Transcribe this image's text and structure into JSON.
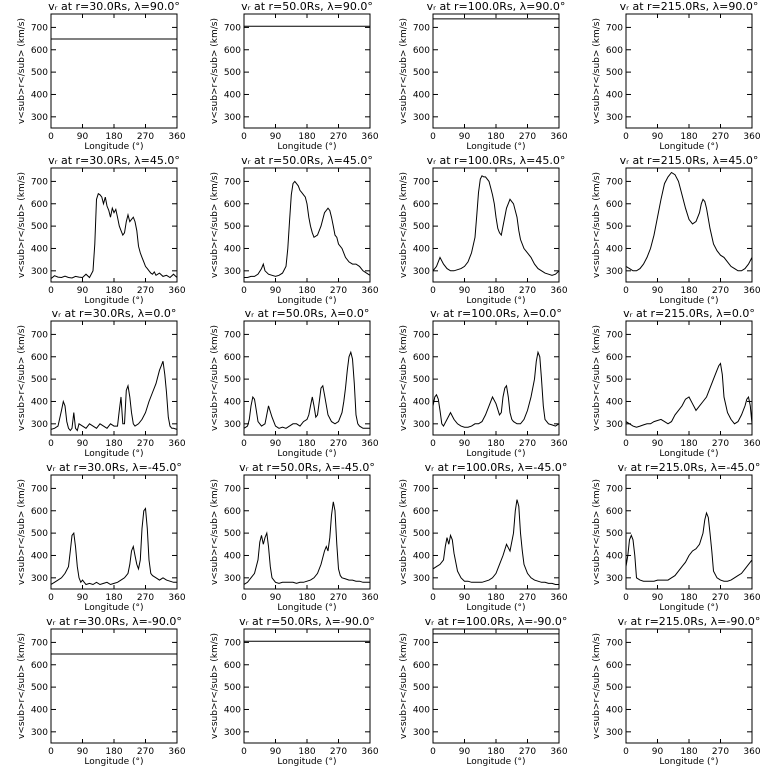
{
  "chart_data": {
    "type": "line",
    "grid": "4 columns x 5 rows of line panels; no gridlines, no legend",
    "xlabel": "Longitude (°)",
    "ylabel": "v<sub>r</sub> (km/s)",
    "xlim": [
      0,
      360
    ],
    "ylim": [
      250,
      760
    ],
    "xticks": [
      0,
      90,
      180,
      270,
      360
    ],
    "yticks": [
      300,
      400,
      500,
      600,
      700
    ],
    "panels": [
      {
        "title": "vᵣ at r=30.0Rs, λ=90.0°",
        "x": [
          0,
          360
        ],
        "y": [
          648,
          648
        ]
      },
      {
        "title": "vᵣ at r=50.0Rs, λ=90.0°",
        "x": [
          0,
          360
        ],
        "y": [
          705,
          705
        ]
      },
      {
        "title": "vᵣ at r=100.0Rs, λ=90.0°",
        "x": [
          0,
          360
        ],
        "y": [
          738,
          738
        ]
      },
      {
        "title": "vᵣ at r=215.0Rs, λ=90.0°",
        "x": [
          0,
          360
        ],
        "y": [
          760,
          760
        ]
      },
      {
        "title": "vᵣ at r=30.0Rs, λ=45.0°",
        "x": [
          0,
          10,
          20,
          30,
          40,
          50,
          60,
          70,
          80,
          90,
          100,
          110,
          120,
          125,
          130,
          135,
          140,
          145,
          150,
          155,
          160,
          165,
          170,
          175,
          180,
          185,
          190,
          195,
          200,
          205,
          210,
          215,
          220,
          225,
          230,
          235,
          240,
          245,
          250,
          255,
          260,
          265,
          270,
          275,
          280,
          285,
          290,
          295,
          300,
          310,
          320,
          330,
          340,
          350,
          360
        ],
        "y": [
          265,
          278,
          272,
          270,
          276,
          270,
          268,
          275,
          272,
          270,
          285,
          270,
          300,
          420,
          620,
          645,
          640,
          630,
          600,
          630,
          590,
          570,
          540,
          580,
          560,
          575,
          540,
          500,
          480,
          460,
          470,
          520,
          550,
          520,
          530,
          540,
          520,
          480,
          410,
          380,
          360,
          340,
          320,
          310,
          300,
          290,
          285,
          295,
          280,
          290,
          275,
          280,
          270,
          285,
          270
        ]
      },
      {
        "title": "vᵣ at r=50.0Rs, λ=45.0°",
        "x": [
          0,
          10,
          20,
          30,
          40,
          50,
          55,
          60,
          70,
          80,
          90,
          100,
          110,
          120,
          125,
          130,
          135,
          140,
          145,
          150,
          155,
          160,
          165,
          170,
          175,
          180,
          185,
          190,
          195,
          200,
          210,
          220,
          230,
          240,
          245,
          250,
          255,
          260,
          265,
          270,
          280,
          290,
          300,
          310,
          320,
          330,
          340,
          350,
          360
        ],
        "y": [
          270,
          270,
          275,
          275,
          285,
          310,
          330,
          300,
          285,
          280,
          275,
          280,
          290,
          320,
          400,
          520,
          640,
          690,
          700,
          690,
          680,
          660,
          650,
          640,
          630,
          600,
          540,
          500,
          470,
          450,
          460,
          500,
          560,
          580,
          570,
          540,
          500,
          460,
          450,
          420,
          400,
          360,
          340,
          330,
          330,
          320,
          300,
          290,
          280
        ]
      },
      {
        "title": "vᵣ at r=100.0Rs, λ=45.0°",
        "x": [
          0,
          10,
          20,
          30,
          40,
          50,
          60,
          70,
          80,
          90,
          100,
          110,
          120,
          125,
          130,
          135,
          140,
          145,
          150,
          155,
          160,
          165,
          170,
          175,
          180,
          185,
          190,
          195,
          200,
          210,
          220,
          230,
          240,
          245,
          250,
          260,
          270,
          280,
          290,
          300,
          310,
          320,
          330,
          340,
          350,
          360
        ],
        "y": [
          300,
          320,
          360,
          330,
          310,
          300,
          300,
          305,
          310,
          320,
          340,
          380,
          450,
          550,
          650,
          710,
          725,
          720,
          720,
          710,
          700,
          670,
          640,
          600,
          540,
          490,
          470,
          460,
          500,
          580,
          620,
          600,
          540,
          480,
          440,
          400,
          380,
          360,
          330,
          310,
          300,
          290,
          285,
          280,
          285,
          300
        ]
      },
      {
        "title": "vᵣ at r=215.0Rs, λ=45.0°",
        "x": [
          0,
          10,
          20,
          30,
          40,
          50,
          60,
          70,
          80,
          90,
          100,
          110,
          120,
          130,
          140,
          150,
          160,
          170,
          180,
          190,
          200,
          210,
          215,
          220,
          225,
          230,
          240,
          250,
          260,
          270,
          280,
          290,
          300,
          310,
          320,
          330,
          340,
          350,
          360
        ],
        "y": [
          320,
          310,
          300,
          300,
          310,
          330,
          360,
          400,
          460,
          540,
          620,
          690,
          720,
          740,
          730,
          700,
          640,
          580,
          530,
          510,
          520,
          560,
          600,
          620,
          610,
          580,
          490,
          420,
          390,
          370,
          360,
          340,
          320,
          310,
          300,
          300,
          310,
          330,
          360
        ]
      },
      {
        "title": "vᵣ at r=30.0Rs, λ=0.0°",
        "x": [
          0,
          10,
          20,
          30,
          35,
          40,
          45,
          50,
          55,
          60,
          65,
          70,
          75,
          80,
          90,
          100,
          110,
          120,
          130,
          140,
          150,
          160,
          170,
          180,
          190,
          195,
          200,
          205,
          210,
          215,
          220,
          225,
          230,
          235,
          240,
          250,
          260,
          270,
          280,
          290,
          300,
          310,
          315,
          320,
          325,
          330,
          335,
          340,
          345,
          350,
          360
        ],
        "y": [
          275,
          280,
          290,
          360,
          400,
          380,
          310,
          280,
          270,
          280,
          350,
          280,
          270,
          300,
          290,
          280,
          300,
          290,
          280,
          300,
          290,
          280,
          300,
          290,
          290,
          360,
          420,
          300,
          300,
          450,
          470,
          420,
          350,
          300,
          290,
          300,
          320,
          350,
          400,
          440,
          480,
          540,
          560,
          580,
          520,
          440,
          330,
          290,
          280,
          280,
          275
        ]
      },
      {
        "title": "vᵣ at r=50.0Rs, λ=0.0°",
        "x": [
          0,
          10,
          15,
          20,
          25,
          30,
          35,
          40,
          50,
          60,
          70,
          80,
          90,
          100,
          110,
          120,
          130,
          140,
          150,
          160,
          170,
          180,
          185,
          190,
          195,
          200,
          205,
          210,
          215,
          220,
          225,
          230,
          240,
          250,
          260,
          270,
          280,
          285,
          290,
          295,
          300,
          305,
          310,
          315,
          320,
          325,
          330,
          340,
          350,
          360
        ],
        "y": [
          280,
          290,
          320,
          380,
          420,
          410,
          360,
          310,
          290,
          300,
          380,
          330,
          290,
          280,
          285,
          280,
          290,
          300,
          300,
          290,
          310,
          320,
          340,
          380,
          420,
          380,
          330,
          340,
          400,
          460,
          470,
          430,
          340,
          310,
          300,
          310,
          350,
          400,
          460,
          540,
          600,
          620,
          590,
          480,
          340,
          300,
          290,
          280,
          280,
          280
        ]
      },
      {
        "title": "vᵣ at r=100.0Rs, λ=0.0°",
        "x": [
          0,
          5,
          10,
          15,
          20,
          25,
          30,
          40,
          50,
          60,
          70,
          80,
          90,
          100,
          110,
          120,
          130,
          140,
          150,
          160,
          170,
          180,
          190,
          195,
          200,
          205,
          210,
          215,
          220,
          225,
          230,
          240,
          250,
          260,
          270,
          280,
          290,
          295,
          300,
          305,
          310,
          315,
          320,
          330,
          340,
          350,
          360
        ],
        "y": [
          380,
          420,
          430,
          410,
          360,
          300,
          290,
          320,
          350,
          320,
          300,
          290,
          285,
          285,
          290,
          300,
          300,
          310,
          340,
          380,
          420,
          390,
          340,
          350,
          420,
          460,
          470,
          420,
          350,
          320,
          310,
          300,
          300,
          320,
          360,
          420,
          500,
          580,
          620,
          600,
          500,
          380,
          320,
          300,
          295,
          290,
          300
        ]
      },
      {
        "title": "vᵣ at r=215.0Rs, λ=0.0°",
        "x": [
          0,
          10,
          20,
          30,
          40,
          50,
          60,
          70,
          80,
          90,
          100,
          110,
          120,
          130,
          140,
          150,
          160,
          170,
          180,
          190,
          200,
          210,
          220,
          230,
          240,
          250,
          260,
          265,
          270,
          275,
          280,
          290,
          300,
          310,
          320,
          330,
          340,
          345,
          350,
          355,
          360
        ],
        "y": [
          310,
          300,
          290,
          285,
          290,
          295,
          300,
          300,
          310,
          315,
          320,
          310,
          300,
          310,
          340,
          360,
          380,
          410,
          420,
          390,
          360,
          380,
          400,
          420,
          460,
          500,
          540,
          560,
          570,
          520,
          420,
          350,
          320,
          300,
          310,
          340,
          380,
          410,
          420,
          380,
          300
        ]
      },
      {
        "title": "vᵣ at r=30.0Rs, λ=-45.0°",
        "x": [
          0,
          10,
          20,
          30,
          40,
          50,
          55,
          60,
          65,
          70,
          75,
          80,
          85,
          90,
          100,
          110,
          120,
          130,
          140,
          150,
          160,
          170,
          180,
          190,
          200,
          210,
          220,
          225,
          230,
          235,
          240,
          245,
          250,
          255,
          260,
          265,
          270,
          275,
          280,
          285,
          290,
          300,
          310,
          320,
          330,
          340,
          350,
          360
        ],
        "y": [
          270,
          280,
          290,
          300,
          320,
          350,
          420,
          490,
          500,
          440,
          350,
          300,
          280,
          290,
          270,
          275,
          270,
          280,
          270,
          275,
          280,
          270,
          275,
          280,
          290,
          300,
          320,
          360,
          420,
          440,
          400,
          360,
          340,
          380,
          520,
          600,
          610,
          520,
          380,
          320,
          310,
          300,
          290,
          300,
          290,
          285,
          280,
          280
        ]
      },
      {
        "title": "vᵣ at r=50.0Rs, λ=-45.0°",
        "x": [
          0,
          10,
          20,
          30,
          40,
          45,
          50,
          55,
          60,
          65,
          70,
          75,
          80,
          90,
          100,
          110,
          120,
          130,
          140,
          150,
          160,
          170,
          180,
          190,
          200,
          210,
          220,
          230,
          235,
          240,
          245,
          250,
          255,
          260,
          265,
          270,
          275,
          280,
          290,
          300,
          310,
          320,
          330,
          340,
          350,
          360
        ],
        "y": [
          270,
          280,
          300,
          320,
          380,
          460,
          490,
          450,
          480,
          500,
          440,
          350,
          300,
          280,
          275,
          280,
          280,
          280,
          280,
          275,
          280,
          280,
          285,
          290,
          300,
          320,
          360,
          420,
          440,
          420,
          480,
          580,
          640,
          600,
          450,
          340,
          310,
          300,
          295,
          290,
          290,
          285,
          285,
          280,
          280,
          280
        ]
      },
      {
        "title": "vᵣ at r=100.0Rs, λ=-45.0°",
        "x": [
          0,
          10,
          20,
          30,
          35,
          40,
          45,
          50,
          55,
          60,
          70,
          80,
          90,
          100,
          110,
          120,
          130,
          140,
          150,
          160,
          170,
          180,
          190,
          200,
          210,
          220,
          230,
          235,
          240,
          245,
          250,
          255,
          260,
          270,
          280,
          290,
          300,
          310,
          320,
          330,
          340,
          350,
          360
        ],
        "y": [
          340,
          350,
          360,
          380,
          440,
          480,
          450,
          490,
          470,
          410,
          330,
          300,
          285,
          285,
          280,
          280,
          280,
          280,
          285,
          290,
          300,
          320,
          360,
          400,
          450,
          420,
          500,
          600,
          650,
          620,
          500,
          420,
          360,
          320,
          300,
          290,
          285,
          280,
          280,
          275,
          275,
          270,
          270
        ]
      },
      {
        "title": "vᵣ at r=215.0Rs, λ=-45.0°",
        "x": [
          0,
          5,
          10,
          15,
          20,
          25,
          30,
          40,
          50,
          60,
          70,
          80,
          90,
          100,
          110,
          120,
          130,
          140,
          150,
          160,
          170,
          180,
          190,
          200,
          210,
          220,
          225,
          230,
          235,
          240,
          245,
          250,
          260,
          270,
          280,
          290,
          300,
          310,
          320,
          330,
          340,
          350,
          360
        ],
        "y": [
          350,
          400,
          470,
          490,
          470,
          400,
          300,
          290,
          285,
          285,
          285,
          285,
          290,
          290,
          290,
          290,
          300,
          310,
          330,
          350,
          370,
          400,
          420,
          430,
          450,
          500,
          560,
          590,
          570,
          500,
          420,
          330,
          300,
          290,
          285,
          285,
          290,
          300,
          310,
          320,
          340,
          360,
          380
        ]
      },
      {
        "title": "vᵣ at r=30.0Rs, λ=-90.0°",
        "x": [
          0,
          360
        ],
        "y": [
          648,
          648
        ]
      },
      {
        "title": "vᵣ at r=50.0Rs, λ=-90.0°",
        "x": [
          0,
          360
        ],
        "y": [
          705,
          705
        ]
      },
      {
        "title": "vᵣ at r=100.0Rs, λ=-90.0°",
        "x": [
          0,
          360
        ],
        "y": [
          738,
          738
        ]
      },
      {
        "title": "vᵣ at r=215.0Rs, λ=-90.0°",
        "x": [
          0,
          360
        ],
        "y": [
          760,
          760
        ]
      }
    ]
  }
}
